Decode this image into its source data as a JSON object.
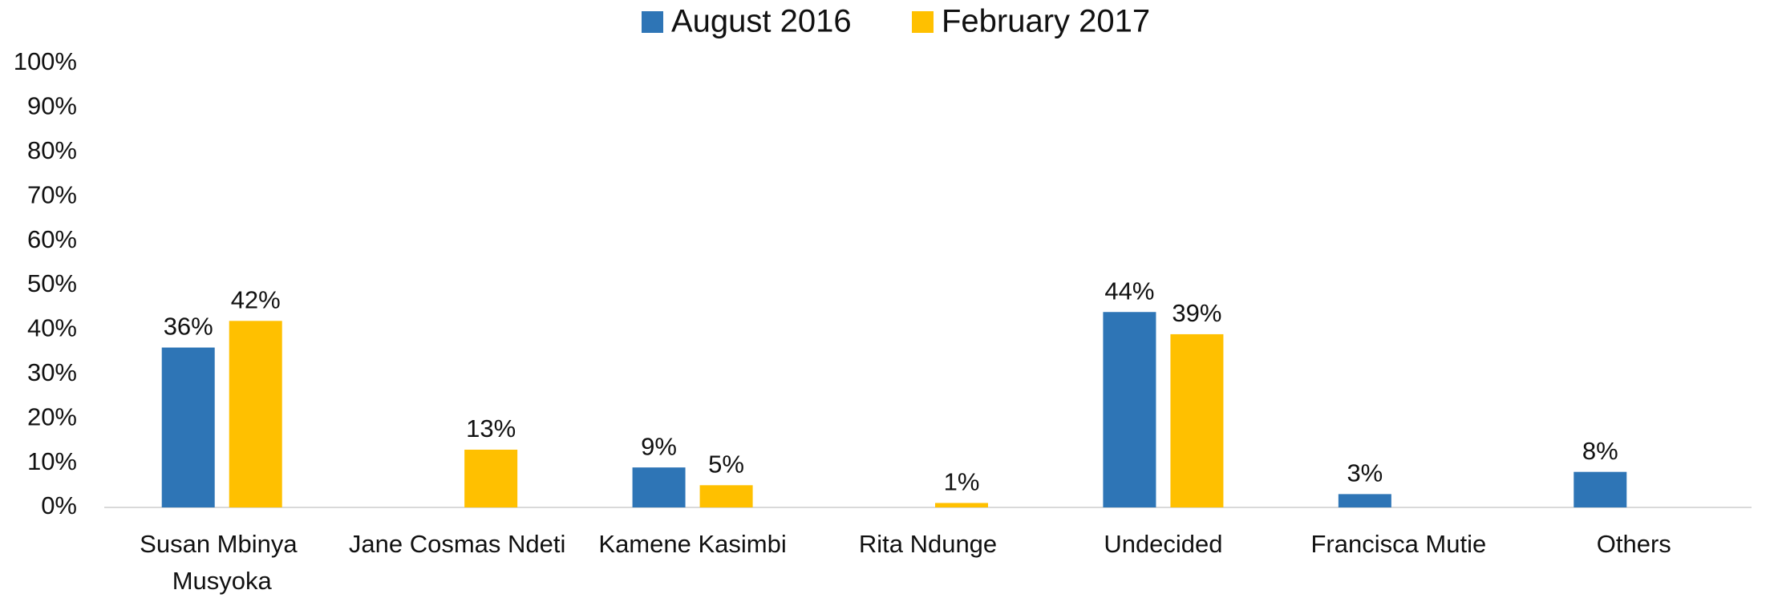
{
  "chart_data": {
    "type": "bar",
    "categories": [
      "Susan Mbinya Musyoka",
      "Jane Cosmas Ndeti",
      "Kamene Kasimbi",
      "Rita Ndunge",
      "Undecided",
      "Francisca Mutie",
      "Others"
    ],
    "series": [
      {
        "name": "August 2016",
        "color": "#2e75b6",
        "values": [
          36,
          null,
          9,
          null,
          44,
          3,
          8
        ],
        "value_labels": [
          "36%",
          null,
          "9%",
          null,
          "44%",
          "3%",
          "8%"
        ]
      },
      {
        "name": "February 2017",
        "color": "#ffc000",
        "values": [
          42,
          13,
          5,
          1,
          39,
          null,
          null
        ],
        "value_labels": [
          "42%",
          "13%",
          "5%",
          "1%",
          "39%",
          null,
          null
        ]
      }
    ],
    "ylim": [
      0,
      100
    ],
    "yticks": [
      {
        "value": 0,
        "label": "0%"
      },
      {
        "value": 10,
        "label": "10%"
      },
      {
        "value": 20,
        "label": "20%"
      },
      {
        "value": 30,
        "label": "30%"
      },
      {
        "value": 40,
        "label": "40%"
      },
      {
        "value": 50,
        "label": "50%"
      },
      {
        "value": 60,
        "label": "60%"
      },
      {
        "value": 70,
        "label": "70%"
      },
      {
        "value": 80,
        "label": "80%"
      },
      {
        "value": 90,
        "label": "90%"
      },
      {
        "value": 100,
        "label": "100%"
      }
    ],
    "grid": false,
    "legend": "top"
  }
}
